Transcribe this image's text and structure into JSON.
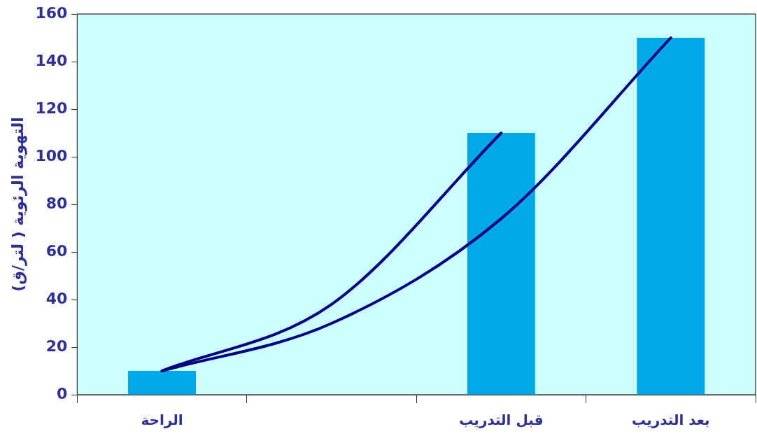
{
  "chart_data": {
    "type": "bar",
    "ylabel": "التهوية الرئوية ( لتر/ق)",
    "categories": [
      "الراحة",
      null,
      "قبل التدريب",
      "بعد التدريب"
    ],
    "series": [
      {
        "color": "#00a8e8",
        "values": [
          10,
          null,
          110,
          150
        ]
      },
      {
        "type": "line",
        "color": "#000080",
        "values": [
          10,
          38,
          110,
          null
        ]
      },
      {
        "type": "line",
        "color": "#000080",
        "values": [
          10,
          30,
          74,
          150
        ]
      }
    ],
    "ylim": [
      0,
      160
    ],
    "yticks": [
      0,
      20,
      40,
      60,
      80,
      100,
      120,
      140,
      160
    ],
    "grid": false,
    "legend": false,
    "marker": "none"
  }
}
